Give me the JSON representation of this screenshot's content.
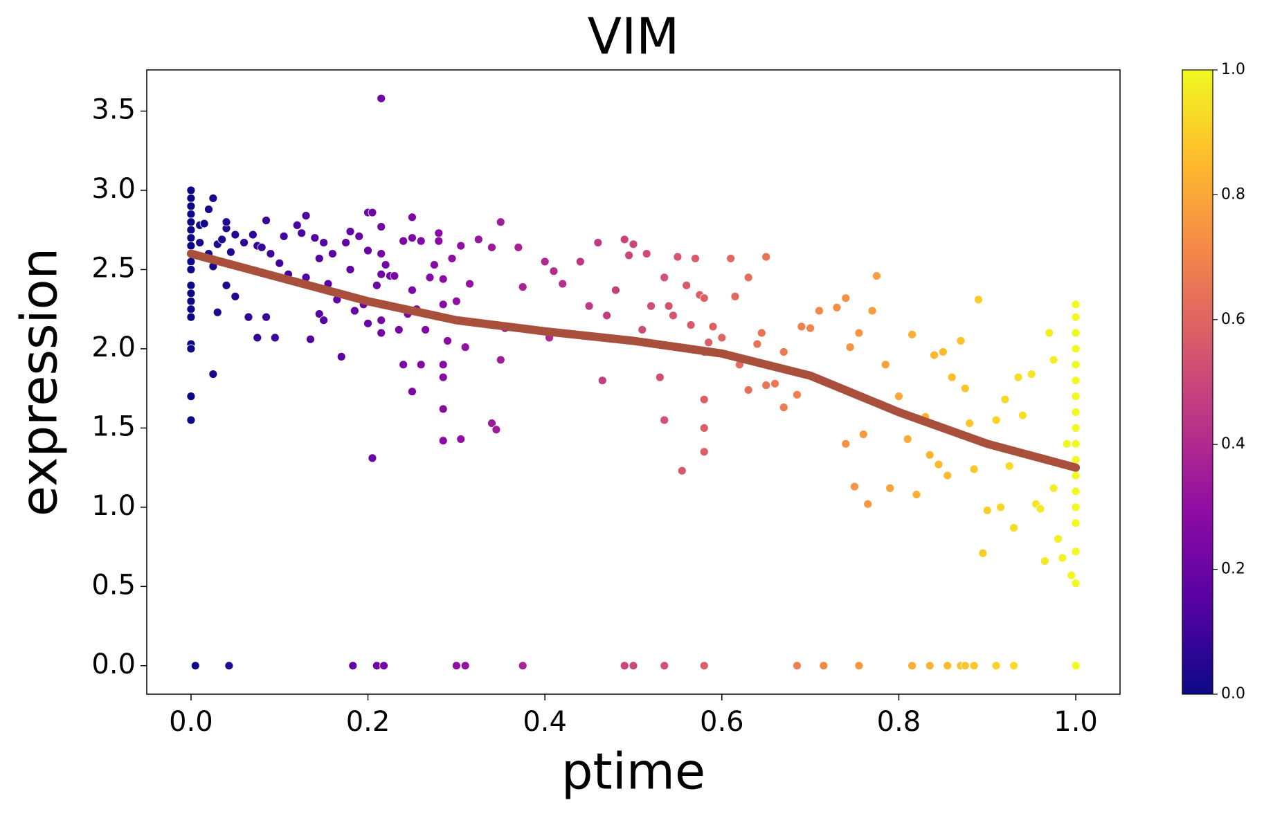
{
  "chart_data": {
    "type": "scatter",
    "title": "VIM",
    "xlabel": "ptime",
    "ylabel": "expression",
    "xlim": [
      -0.05,
      1.05
    ],
    "ylim": [
      -0.18,
      3.76
    ],
    "xticks": [
      {
        "value": 0,
        "label": "0.0"
      },
      0.2,
      0.4,
      0.6,
      0.8,
      {
        "value": 1,
        "label": "1.0"
      }
    ],
    "yticks": [
      {
        "value": 0,
        "label": "0.0"
      },
      0.5,
      {
        "value": 1,
        "label": "1.0"
      },
      1.5,
      {
        "value": 2,
        "label": "2.0"
      },
      2.5,
      {
        "value": 3,
        "label": "3.0"
      },
      3.5
    ],
    "colormap": "plasma",
    "clim": [
      0,
      1
    ],
    "cticks": [
      {
        "value": 0,
        "label": "0.0"
      },
      0.2,
      0.4,
      0.6,
      0.8,
      {
        "value": 1,
        "label": "1.0"
      }
    ],
    "x": [
      0,
      0,
      0,
      0,
      0,
      0,
      0,
      0,
      0,
      0,
      0,
      0,
      0,
      0,
      0,
      0,
      0,
      0,
      0,
      0,
      0.01,
      0.015,
      0.01,
      0.02,
      0.025,
      0.02,
      0.025,
      0.03,
      0.03,
      0.025,
      0.035,
      0.04,
      0.04,
      0.04,
      0.045,
      0.05,
      0.05,
      0.06,
      0.065,
      0.07,
      0.075,
      0.075,
      0.08,
      0.085,
      0.085,
      0.09,
      0.095,
      0.1,
      0.105,
      0.11,
      0.12,
      0.125,
      0.13,
      0.13,
      0.135,
      0.14,
      0.145,
      0.145,
      0.15,
      0.15,
      0.155,
      0.16,
      0.165,
      0.17,
      0.175,
      0.18,
      0.18,
      0.185,
      0.19,
      0.195,
      0.2,
      0.2,
      0.2,
      0.205,
      0.205,
      0.21,
      0.215,
      0.215,
      0.215,
      0.215,
      0.215,
      0.215,
      0.22,
      0.225,
      0.23,
      0.235,
      0.24,
      0.24,
      0.245,
      0.25,
      0.25,
      0.25,
      0.25,
      0.255,
      0.26,
      0.26,
      0.265,
      0.27,
      0.275,
      0.28,
      0.28,
      0.285,
      0.285,
      0.285,
      0.285,
      0.285,
      0.285,
      0.29,
      0.295,
      0.3,
      0.305,
      0.305,
      0.31,
      0.315,
      0.325,
      0.34,
      0.34,
      0.345,
      0.35,
      0.35,
      0.355,
      0.37,
      0.375,
      0.4,
      0.405,
      0.41,
      0.42,
      0.44,
      0.45,
      0.46,
      0.465,
      0.47,
      0.48,
      0.49,
      0.495,
      0.5,
      0.51,
      0.515,
      0.52,
      0.53,
      0.535,
      0.535,
      0.54,
      0.545,
      0.55,
      0.555,
      0.56,
      0.565,
      0.57,
      0.575,
      0.58,
      0.58,
      0.58,
      0.58,
      0.58,
      0.585,
      0.59,
      0.6,
      0.61,
      0.615,
      0.62,
      0.63,
      0.63,
      0.64,
      0.645,
      0.65,
      0.65,
      0.66,
      0.67,
      0.67,
      0.685,
      0.69,
      0.7,
      0.71,
      0.73,
      0.74,
      0.74,
      0.745,
      0.75,
      0.755,
      0.76,
      0.765,
      0.77,
      0.775,
      0.78,
      0.785,
      0.79,
      0.8,
      0.81,
      0.815,
      0.82,
      0.83,
      0.835,
      0.84,
      0.845,
      0.85,
      0.855,
      0.86,
      0.87,
      0.875,
      0.88,
      0.885,
      0.89,
      0.895,
      0.9,
      0.91,
      0.915,
      0.92,
      0.925,
      0.93,
      0.935,
      0.94,
      0.95,
      0.955,
      0.96,
      0.965,
      0.97,
      0.975,
      0.975,
      0.98,
      0.985,
      0.99,
      0.995,
      1,
      1,
      1,
      1,
      1,
      1,
      1,
      1,
      1,
      1,
      1,
      1,
      1,
      1,
      1,
      1,
      1,
      0.005,
      0.043,
      0.183,
      0.21,
      0.218,
      0.3,
      0.31,
      0.375,
      0.49,
      0.5,
      0.535,
      0.58,
      0.685,
      0.715,
      0.755,
      0.815,
      0.835,
      0.855,
      0.87,
      0.875,
      0.885,
      0.91,
      0.93,
      1
    ],
    "values": [
      3.0,
      2.95,
      2.9,
      2.85,
      2.8,
      2.75,
      2.7,
      2.65,
      2.6,
      2.55,
      2.5,
      2.4,
      2.35,
      2.3,
      2.25,
      2.2,
      2.03,
      2.0,
      1.7,
      1.55,
      2.78,
      2.79,
      2.67,
      2.88,
      2.95,
      2.6,
      2.52,
      2.66,
      2.23,
      1.84,
      2.69,
      2.76,
      2.8,
      2.4,
      2.61,
      2.72,
      2.33,
      2.67,
      2.2,
      2.72,
      2.65,
      2.07,
      2.64,
      2.81,
      2.2,
      2.6,
      2.07,
      2.54,
      2.71,
      2.47,
      2.78,
      2.73,
      2.84,
      2.45,
      2.06,
      2.7,
      2.57,
      2.22,
      2.18,
      2.67,
      2.41,
      2.6,
      2.31,
      1.95,
      2.67,
      2.74,
      2.5,
      2.24,
      2.71,
      2.28,
      2.86,
      2.62,
      2.16,
      2.86,
      1.31,
      2.4,
      3.58,
      2.6,
      2.77,
      2.47,
      2.18,
      2.1,
      2.53,
      2.46,
      2.46,
      2.12,
      2.68,
      1.9,
      2.22,
      2.83,
      2.7,
      2.37,
      1.73,
      2.25,
      2.68,
      1.9,
      2.12,
      2.45,
      2.53,
      2.73,
      2.68,
      2.44,
      2.28,
      1.9,
      1.82,
      1.62,
      1.42,
      2.05,
      2.57,
      2.3,
      1.43,
      2.65,
      2.01,
      2.41,
      2.69,
      2.64,
      1.53,
      1.49,
      2.8,
      1.93,
      2.13,
      2.64,
      2.39,
      2.55,
      2.07,
      2.49,
      2.41,
      2.55,
      2.27,
      2.67,
      1.8,
      2.21,
      2.37,
      2.69,
      2.59,
      2.66,
      2.12,
      2.6,
      2.27,
      1.82,
      2.45,
      1.55,
      2.27,
      2.21,
      2.58,
      1.23,
      2.4,
      2.15,
      2.57,
      2.34,
      2.32,
      1.98,
      1.68,
      1.5,
      1.35,
      2.04,
      2.14,
      2.07,
      2.57,
      2.33,
      1.9,
      2.45,
      1.74,
      2.03,
      2.1,
      2.58,
      1.77,
      1.78,
      1.63,
      1.98,
      1.71,
      2.14,
      2.13,
      2.24,
      2.26,
      2.32,
      1.4,
      2.01,
      1.13,
      2.1,
      1.46,
      1.02,
      2.24,
      2.46,
      1.65,
      1.9,
      1.12,
      1.7,
      1.43,
      2.09,
      1.08,
      1.57,
      1.33,
      1.96,
      1.27,
      1.98,
      1.2,
      1.82,
      2.05,
      1.75,
      1.53,
      1.24,
      2.31,
      0.71,
      0.98,
      1.55,
      1.0,
      1.68,
      1.26,
      0.87,
      1.82,
      1.58,
      1.84,
      1.02,
      0.99,
      0.66,
      2.1,
      1.12,
      1.93,
      0.8,
      0.68,
      1.4,
      0.57,
      2.28,
      2.2,
      2.1,
      2.0,
      1.9,
      1.8,
      1.7,
      1.6,
      1.5,
      1.4,
      1.3,
      1.2,
      1.1,
      1.0,
      0.9,
      0.72,
      0.52,
      0,
      0,
      0,
      0,
      0,
      0,
      0,
      0,
      0,
      0,
      0,
      0,
      0,
      0,
      0,
      0,
      0,
      0,
      0,
      0,
      0,
      0,
      0,
      0
    ],
    "trend": {
      "color": "#a9503d",
      "x": [
        0,
        0.1,
        0.2,
        0.3,
        0.4,
        0.5,
        0.6,
        0.7,
        0.8,
        0.9,
        1
      ],
      "values": [
        2.6,
        2.45,
        2.3,
        2.18,
        2.11,
        2.05,
        1.97,
        1.83,
        1.6,
        1.4,
        1.25
      ]
    }
  }
}
